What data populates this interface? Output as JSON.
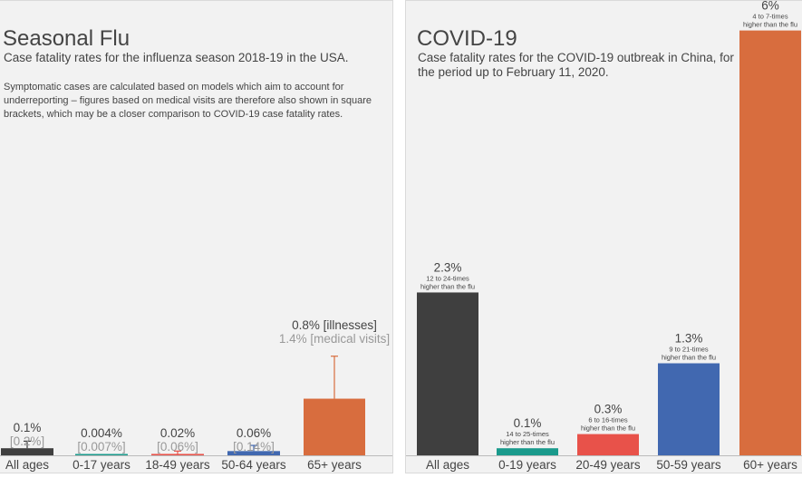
{
  "flu": {
    "title": "Seasonal Flu",
    "subtitle": "Case fatality rates for the influenza season 2018-19 in the USA.",
    "note": "Symptomatic cases are calculated based on models which aim to account for underreporting – figures based on medical visits are therefore also shown in square brackets, which may be a closer comparison to COVID-19 case fatality rates."
  },
  "covid": {
    "title": "COVID-19",
    "subtitle": "Case fatality rates for the COVID-19 outbreak in China, for the period  up to February 11, 2020."
  },
  "chart_data": [
    {
      "type": "bar",
      "title": "Seasonal Flu",
      "categories": [
        "All ages",
        "0-17 years",
        "18-49 years",
        "50-64 years",
        "65+ years"
      ],
      "values": [
        0.1,
        0.004,
        0.02,
        0.06,
        0.8
      ],
      "error_upper": [
        0.2,
        0.007,
        0.06,
        0.14,
        1.4
      ],
      "labels": [
        "0.1%",
        "0.004%",
        "0.02%",
        "0.06%",
        "0.8% [illnesses]"
      ],
      "sub_labels": [
        "[0.2%]",
        "[0.007%]",
        "[0.06%]",
        "[0.14%]",
        "1.4% [medical visits]"
      ],
      "colors": [
        "#3f3f3f",
        "#1a9a8c",
        "#e8524a",
        "#4168b0",
        "#d86d3e"
      ],
      "ylim": [
        0,
        6.2
      ]
    },
    {
      "type": "bar",
      "title": "COVID-19",
      "categories": [
        "All ages",
        "0-19 years",
        "20-49 years",
        "50-59 years",
        "60+ years"
      ],
      "values": [
        2.3,
        0.1,
        0.3,
        1.3,
        6
      ],
      "labels": [
        "2.3%",
        "0.1%",
        "0.3%",
        "1.3%",
        "6%"
      ],
      "comparison": [
        [
          "12 to 24-times",
          "higher than the flu"
        ],
        [
          "14 to 25-times",
          "higher than the flu"
        ],
        [
          "6 to 16-times",
          "higher than the flu"
        ],
        [
          "9 to 21-times",
          "higher than the flu"
        ],
        [
          "4 to 7-times",
          "higher than the flu"
        ]
      ],
      "colors": [
        "#3f3f3f",
        "#1a9a8c",
        "#e8524a",
        "#4168b0",
        "#d86d3e"
      ],
      "ylim": [
        0,
        6.2
      ]
    }
  ]
}
